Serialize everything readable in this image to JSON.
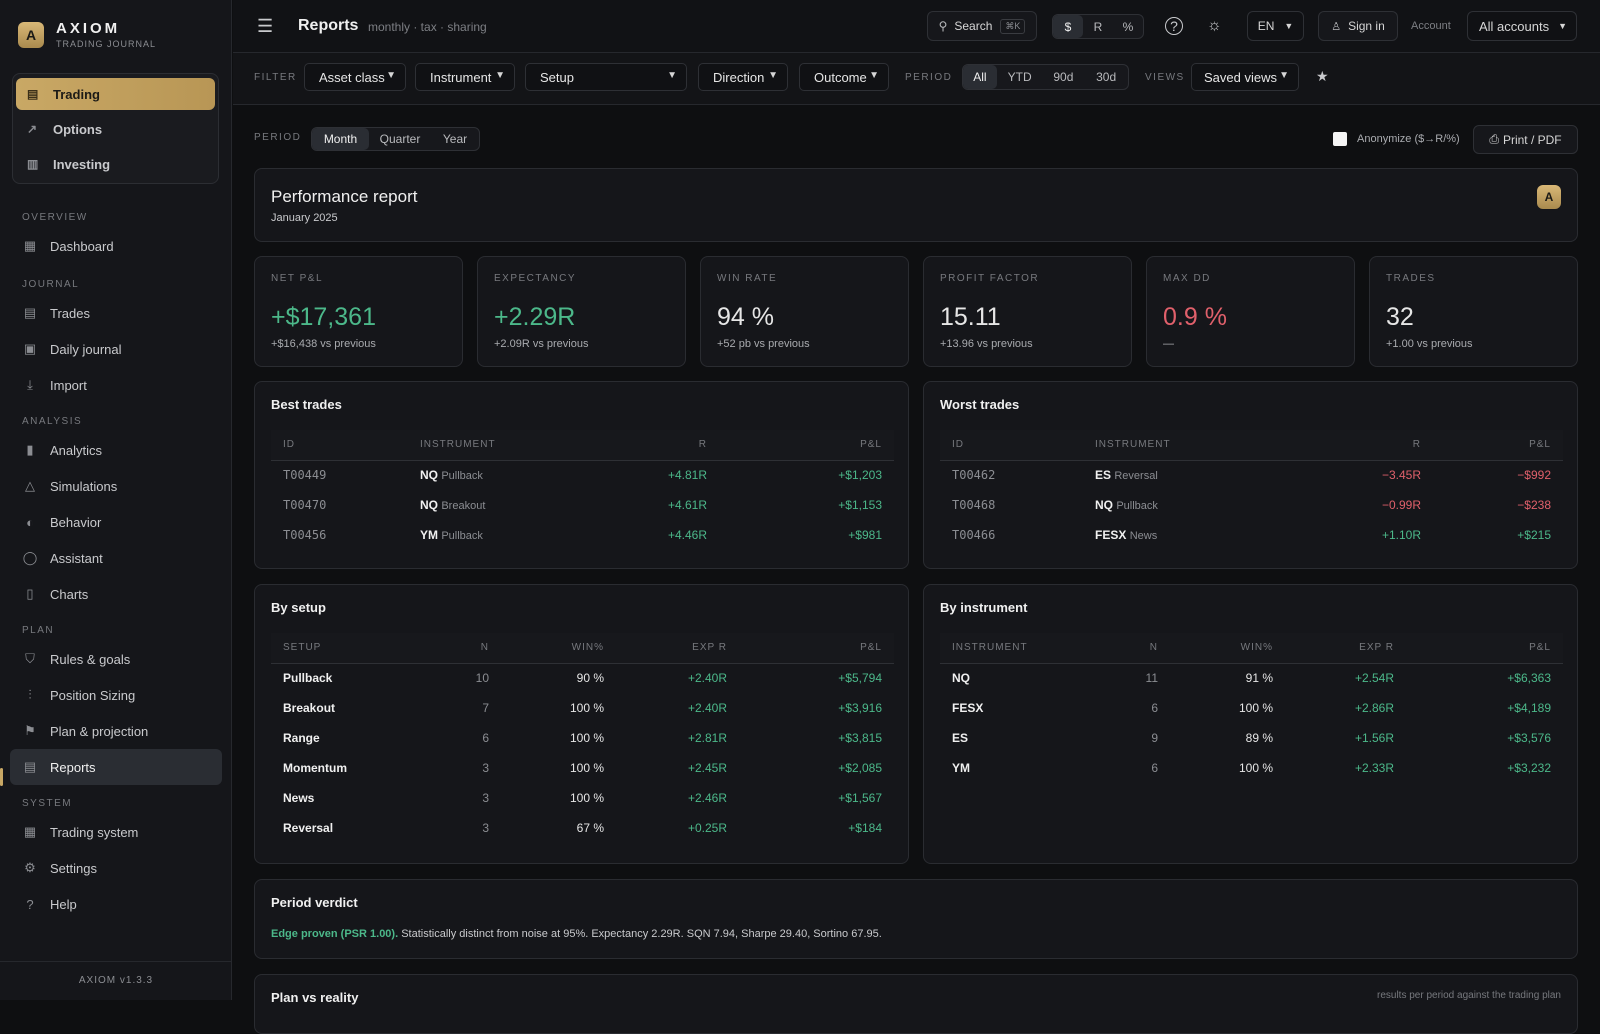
{
  "brand": {
    "logo": "A",
    "name": "AXIOM",
    "subtitle": "TRADING JOURNAL",
    "version": "AXIOM v1.3.3"
  },
  "modes": [
    {
      "label": "Trading",
      "icon": "journal-icon"
    },
    {
      "label": "Options",
      "icon": "line-chart-icon"
    },
    {
      "label": "Investing",
      "icon": "bar-chart-icon"
    }
  ],
  "sidebar": {
    "overview_label": "OVERVIEW",
    "dashboard": "Dashboard",
    "journal_label": "JOURNAL",
    "trades": "Trades",
    "daily_journal": "Daily journal",
    "import": "Import",
    "analysis_label": "ANALYSIS",
    "analytics": "Analytics",
    "simulations": "Simulations",
    "behavior": "Behavior",
    "assistant": "Assistant",
    "charts": "Charts",
    "plan_label": "PLAN",
    "rules": "Rules & goals",
    "position_sizing": "Position Sizing",
    "plan_projection": "Plan & projection",
    "reports": "Reports",
    "system_label": "SYSTEM",
    "trading_system": "Trading system",
    "settings": "Settings",
    "help": "Help"
  },
  "topbar": {
    "title": "Reports",
    "breadcrumb": "monthly · tax · sharing",
    "search": "Search",
    "search_kbd": "⌘K",
    "units": [
      "$",
      "R",
      "%"
    ],
    "lang": "EN",
    "sign_in": "Sign in",
    "account_label": "Account",
    "accounts": "All accounts"
  },
  "filters": {
    "filter_label": "FILTER",
    "asset_class": "Asset class",
    "instrument": "Instrument",
    "setup": "Setup",
    "direction": "Direction",
    "outcome": "Outcome",
    "period_label": "PERIOD",
    "periods": [
      "All",
      "YTD",
      "90d",
      "30d"
    ],
    "views_label": "VIEWS",
    "saved_views": "Saved views"
  },
  "report": {
    "period_label": "PERIOD",
    "periods": [
      "Month",
      "Quarter",
      "Year"
    ],
    "anonymize": "Anonymize ($→R/%)",
    "print": "Print / PDF",
    "title": "Performance report",
    "subtitle": "January 2025",
    "badge": "A"
  },
  "kpis": [
    {
      "label": "NET P&L",
      "value": "+$17,361",
      "sub": "+$16,438 vs previous",
      "color": "#4cb88a"
    },
    {
      "label": "EXPECTANCY",
      "value": "+2.29R",
      "sub": "+2.09R vs previous",
      "color": "#4cb88a"
    },
    {
      "label": "WIN RATE",
      "value": "94 %",
      "sub": "+52 pb vs previous",
      "color": "#ececec"
    },
    {
      "label": "PROFIT FACTOR",
      "value": "15.11",
      "sub": "+13.96 vs previous",
      "color": "#ececec"
    },
    {
      "label": "MAX DD",
      "value": "0.9 %",
      "sub": "—",
      "color": "#e0606b"
    },
    {
      "label": "TRADES",
      "value": "32",
      "sub": "+1.00 vs previous",
      "color": "#ececec"
    }
  ],
  "best": {
    "title": "Best trades",
    "headers": [
      "ID",
      "INSTRUMENT",
      "R",
      "P&L"
    ],
    "rows": [
      {
        "id": "T00449",
        "sym": "NQ",
        "setup": "Pullback",
        "r": "+4.81R",
        "pnl": "+$1,203"
      },
      {
        "id": "T00470",
        "sym": "NQ",
        "setup": "Breakout",
        "r": "+4.61R",
        "pnl": "+$1,153"
      },
      {
        "id": "T00456",
        "sym": "YM",
        "setup": "Pullback",
        "r": "+4.46R",
        "pnl": "+$981"
      }
    ]
  },
  "worst": {
    "title": "Worst trades",
    "headers": [
      "ID",
      "INSTRUMENT",
      "R",
      "P&L"
    ],
    "rows": [
      {
        "id": "T00462",
        "sym": "ES",
        "setup": "Reversal",
        "r": "−3.45R",
        "pnl": "−$992"
      },
      {
        "id": "T00468",
        "sym": "NQ",
        "setup": "Pullback",
        "r": "−0.99R",
        "pnl": "−$238"
      },
      {
        "id": "T00466",
        "sym": "FESX",
        "setup": "News",
        "r": "+1.10R",
        "pnl": "+$215"
      }
    ]
  },
  "by_setup": {
    "title": "By setup",
    "headers": [
      "SETUP",
      "N",
      "WIN%",
      "EXP R",
      "P&L"
    ],
    "rows": [
      {
        "name": "Pullback",
        "n": "10",
        "win": "90 %",
        "exp": "+2.40R",
        "pnl": "+$5,794"
      },
      {
        "name": "Breakout",
        "n": "7",
        "win": "100 %",
        "exp": "+2.40R",
        "pnl": "+$3,916"
      },
      {
        "name": "Range",
        "n": "6",
        "win": "100 %",
        "exp": "+2.81R",
        "pnl": "+$3,815"
      },
      {
        "name": "Momentum",
        "n": "3",
        "win": "100 %",
        "exp": "+2.45R",
        "pnl": "+$2,085"
      },
      {
        "name": "News",
        "n": "3",
        "win": "100 %",
        "exp": "+2.46R",
        "pnl": "+$1,567"
      },
      {
        "name": "Reversal",
        "n": "3",
        "win": "67 %",
        "exp": "+0.25R",
        "pnl": "+$184"
      }
    ]
  },
  "by_instrument": {
    "title": "By instrument",
    "headers": [
      "INSTRUMENT",
      "N",
      "WIN%",
      "EXP R",
      "P&L"
    ],
    "rows": [
      {
        "name": "NQ",
        "n": "11",
        "win": "91 %",
        "exp": "+2.54R",
        "pnl": "+$6,363"
      },
      {
        "name": "FESX",
        "n": "6",
        "win": "100 %",
        "exp": "+2.86R",
        "pnl": "+$4,189"
      },
      {
        "name": "ES",
        "n": "9",
        "win": "89 %",
        "exp": "+1.56R",
        "pnl": "+$3,576"
      },
      {
        "name": "YM",
        "n": "6",
        "win": "100 %",
        "exp": "+2.33R",
        "pnl": "+$3,232"
      }
    ]
  },
  "verdict": {
    "title": "Period verdict",
    "highlight": "Edge proven (PSR 1.00).",
    "text": " Statistically distinct from noise at 95%. Expectancy 2.29R. SQN 7.94, Sharpe 29.40, Sortino 67.95."
  },
  "plan_reality": {
    "title": "Plan vs reality",
    "note": "results per period against the trading plan"
  },
  "colors": {
    "accent": "#c9a865",
    "positive": "#4cb88a",
    "negative": "#e0606b",
    "background": "#0e0f11"
  }
}
